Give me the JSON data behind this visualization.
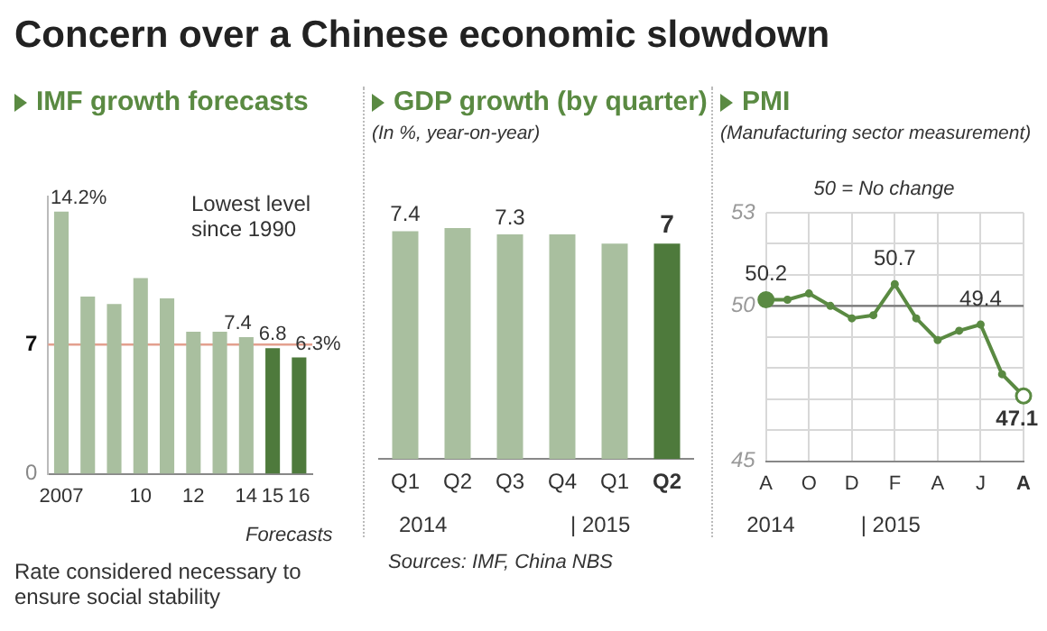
{
  "chart_data": [
    {
      "type": "other",
      "title": "Concern over a Chinese economic slowdown",
      "annotations": [
        "Sources: IMF, China NBS"
      ]
    },
    {
      "type": "bar",
      "title": "IMF growth forecasts",
      "categories": [
        "2007",
        null,
        null,
        "10",
        null,
        "12",
        null,
        "14",
        "15",
        "16"
      ],
      "values": [
        14.2,
        9.6,
        9.2,
        10.6,
        9.5,
        7.7,
        7.7,
        7.4,
        6.8,
        6.3
      ],
      "colors": [
        "#a9bf9f",
        "#a9bf9f",
        "#a9bf9f",
        "#a9bf9f",
        "#a9bf9f",
        "#a9bf9f",
        "#a9bf9f",
        "#a9bf9f",
        "#4e7a3c",
        "#4e7a3c"
      ],
      "value_labels": [
        "14.2%",
        null,
        null,
        null,
        null,
        null,
        null,
        "7.4",
        "6.8",
        "6.3%"
      ],
      "ylim": [
        0,
        15
      ],
      "yticks": [
        0,
        7
      ],
      "ref_lines": [
        {
          "axis": "y",
          "value": 7,
          "color": "#e3a08e"
        }
      ],
      "annotations": [
        "Lowest level since 1990",
        "Forecasts",
        "Rate considered necessary to ensure social stability"
      ]
    },
    {
      "type": "bar",
      "title": "GDP growth (by quarter)",
      "subtitle": "(In %, year-on-year)",
      "categories": [
        "Q1",
        "Q2",
        "Q3",
        "Q4",
        "Q1",
        "Q2"
      ],
      "values": [
        7.4,
        7.5,
        7.3,
        7.3,
        7.0,
        7.0
      ],
      "colors": [
        "#a9bf9f",
        "#a9bf9f",
        "#a9bf9f",
        "#a9bf9f",
        "#a9bf9f",
        "#4e7a3c"
      ],
      "value_labels": [
        "7.4",
        null,
        "7.3",
        null,
        null,
        "7"
      ],
      "tick_labels": "x",
      "annotations": [
        "2014",
        "| 2015"
      ]
    },
    {
      "type": "line",
      "title": "PMI",
      "subtitle": "(Manufacturing sector measurement)",
      "categories": [
        "A",
        null,
        "O",
        null,
        "D",
        null,
        "F",
        null,
        "A",
        null,
        "J",
        null,
        "A"
      ],
      "values": [
        50.2,
        50.2,
        50.4,
        50.0,
        49.6,
        49.7,
        50.7,
        49.6,
        48.9,
        49.2,
        49.4,
        47.8,
        47.1
      ],
      "color": "#5a8a42",
      "marker": "circle",
      "value_labels": [
        "50.2",
        null,
        null,
        null,
        null,
        null,
        "50.7",
        null,
        null,
        null,
        "49.4",
        null,
        "47.1"
      ],
      "ylim": [
        45,
        53
      ],
      "yticks": [
        45,
        {
          "value": 46,
          "label": null
        },
        {
          "value": 47,
          "label": null
        },
        {
          "value": 48,
          "label": null
        },
        {
          "value": 49,
          "label": null
        },
        50,
        {
          "value": 51,
          "label": null
        },
        {
          "value": 52,
          "label": null
        },
        53
      ],
      "grid": true,
      "ref_lines": [
        {
          "axis": "y",
          "value": 50,
          "color": "#777777"
        }
      ],
      "annotations": [
        "50 = No change",
        "2014",
        "| 2015"
      ]
    }
  ]
}
